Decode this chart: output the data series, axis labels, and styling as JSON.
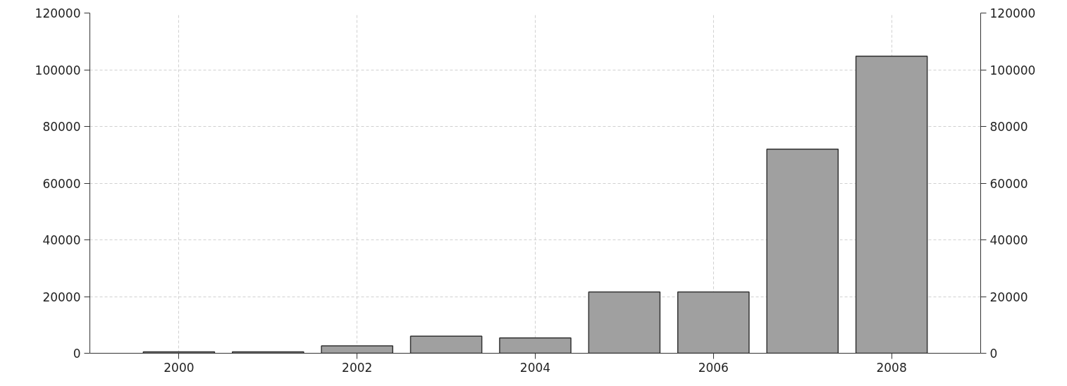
{
  "chart_data": {
    "type": "bar",
    "x": [
      2000,
      2001,
      2002,
      2003,
      2004,
      2005,
      2006,
      2007,
      2008
    ],
    "values": [
      500,
      500,
      2600,
      6000,
      5400,
      21600,
      21600,
      72000,
      104800
    ],
    "color": "#a0a0a0",
    "xlim": [
      1999,
      2009
    ],
    "xticks": [
      2000,
      2002,
      2004,
      2006,
      2008
    ],
    "ylim": [
      0,
      120000
    ],
    "yticks": [
      0,
      20000,
      40000,
      60000,
      80000,
      100000,
      120000
    ],
    "y2lim": [
      0,
      120000
    ],
    "y2ticks": [
      0,
      20000,
      40000,
      60000,
      80000,
      100000,
      120000
    ],
    "grid": true
  }
}
